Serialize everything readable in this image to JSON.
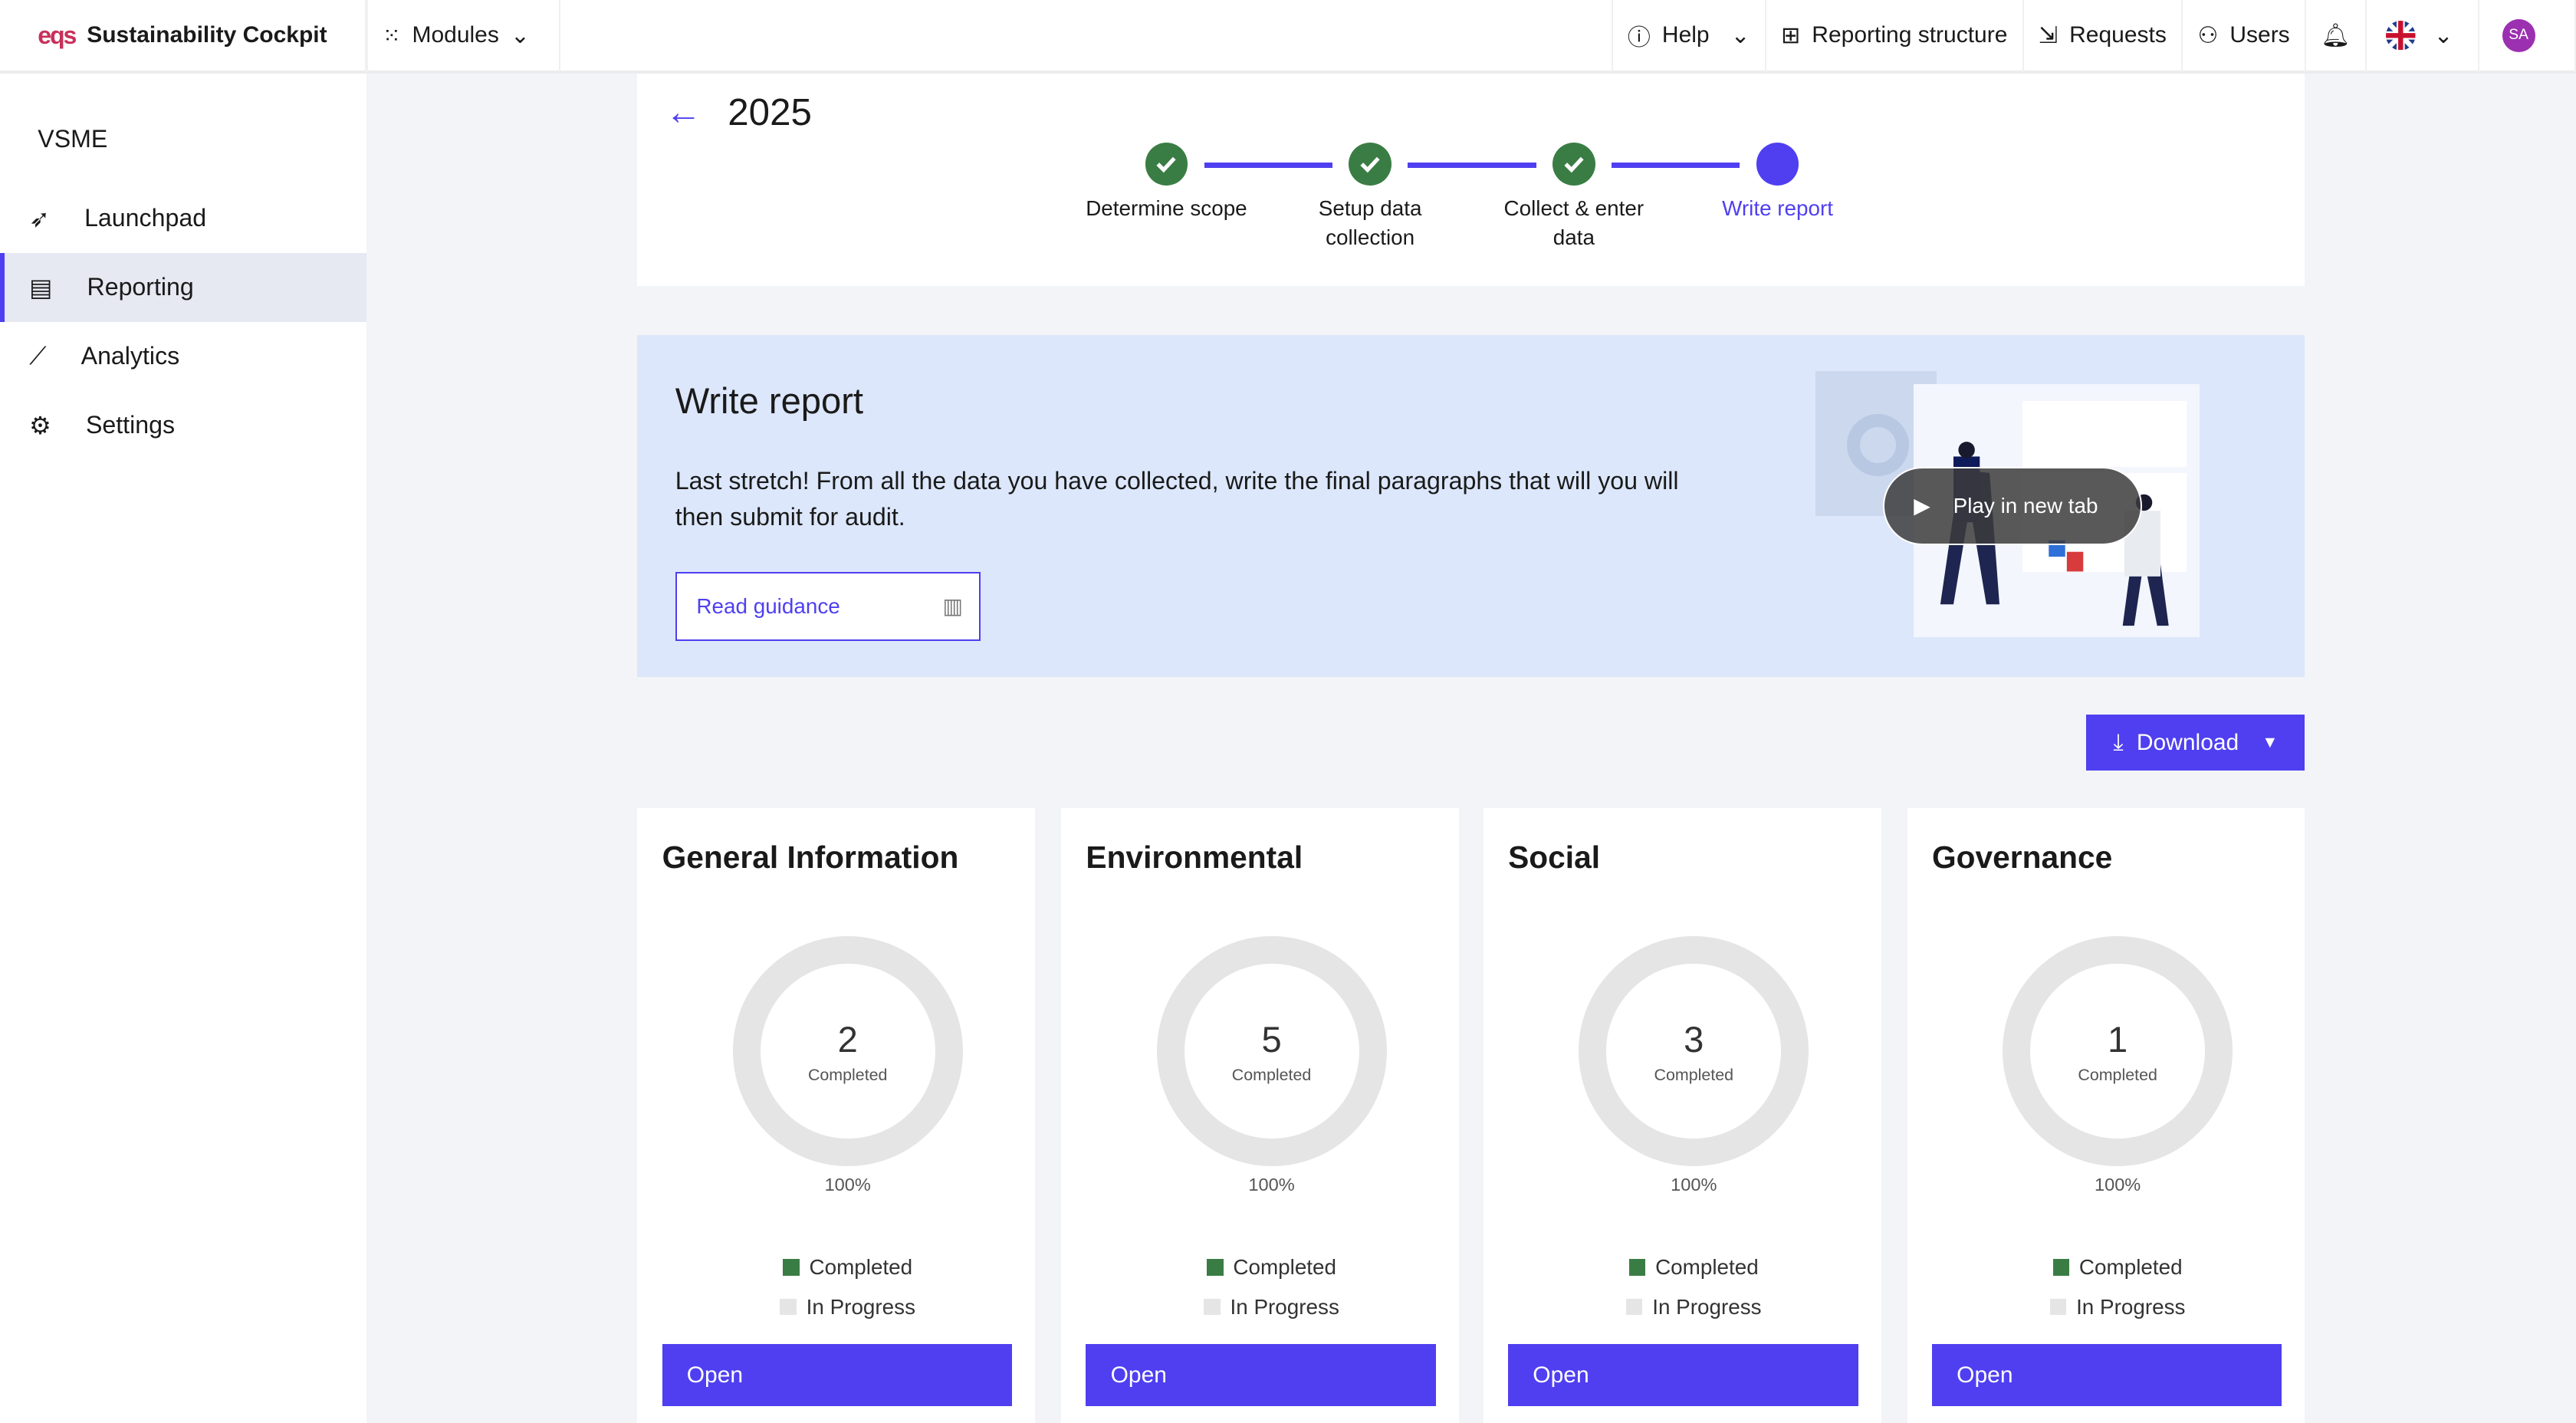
{
  "header": {
    "logo": "eqs",
    "app_title": "Sustainability Cockpit",
    "modules": "Modules",
    "help": "Help",
    "reporting_structure": "Reporting structure",
    "requests": "Requests",
    "users": "Users",
    "avatar": "SA",
    "avatar_color": "#9b30b0"
  },
  "sidebar": {
    "title": "VSME",
    "items": [
      {
        "label": "Launchpad",
        "icon": "rocket-icon"
      },
      {
        "label": "Reporting",
        "icon": "clipboard-icon",
        "active": true
      },
      {
        "label": "Analytics",
        "icon": "chart-line-icon"
      },
      {
        "label": "Settings",
        "icon": "gear-icon"
      }
    ]
  },
  "page": {
    "year": "2025",
    "steps": [
      {
        "label": "Determine scope",
        "status": "done"
      },
      {
        "label": "Setup data collection",
        "status": "done"
      },
      {
        "label": "Collect & enter data",
        "status": "done"
      },
      {
        "label": "Write report",
        "status": "current"
      }
    ]
  },
  "banner": {
    "title": "Write report",
    "text": "Last stretch! From all the data you have collected, write the final paragraphs that will you will then submit for audit.",
    "guidance": "Read guidance",
    "play": "Play in new tab"
  },
  "download": "Download",
  "cards": [
    {
      "title": "General Information",
      "completed": 2,
      "completed_label": "Completed",
      "percent": "100%",
      "legend_completed": "Completed",
      "legend_progress": "In Progress",
      "open": "Open"
    },
    {
      "title": "Environmental",
      "completed": 5,
      "completed_label": "Completed",
      "percent": "100%",
      "legend_completed": "Completed",
      "legend_progress": "In Progress",
      "open": "Open"
    },
    {
      "title": "Social",
      "completed": 3,
      "completed_label": "Completed",
      "percent": "100%",
      "legend_completed": "Completed",
      "legend_progress": "In Progress",
      "open": "Open"
    },
    {
      "title": "Governance",
      "completed": 1,
      "completed_label": "Completed",
      "percent": "100%",
      "legend_completed": "Completed",
      "legend_progress": "In Progress",
      "open": "Open"
    }
  ],
  "colors": {
    "accent": "#4f3ff0",
    "done": "#3a7d44",
    "banner": "#dce7fb"
  }
}
